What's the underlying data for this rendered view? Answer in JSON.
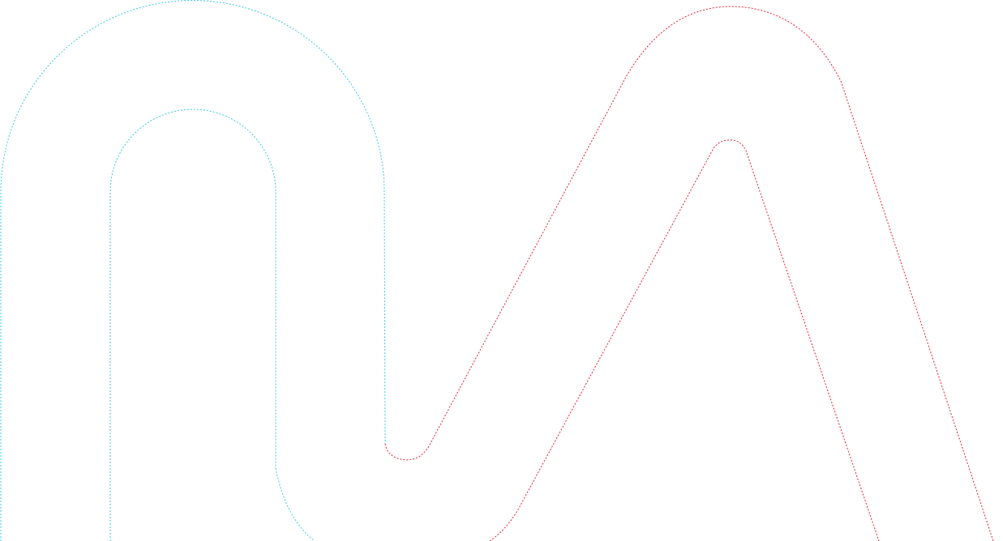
{
  "colors": {
    "background": "#ffffff",
    "cyan_stroke": "#3cc8e6",
    "red_stroke": "#e8203c"
  },
  "shapes": [
    {
      "name": "cyan-outer-arch-outline",
      "color_key": "cyan_stroke"
    },
    {
      "name": "cyan-inner-arch-outline",
      "color_key": "cyan_stroke"
    },
    {
      "name": "red-outer-peak-outline",
      "color_key": "red_stroke"
    },
    {
      "name": "red-inner-peak-outline",
      "color_key": "red_stroke"
    }
  ]
}
